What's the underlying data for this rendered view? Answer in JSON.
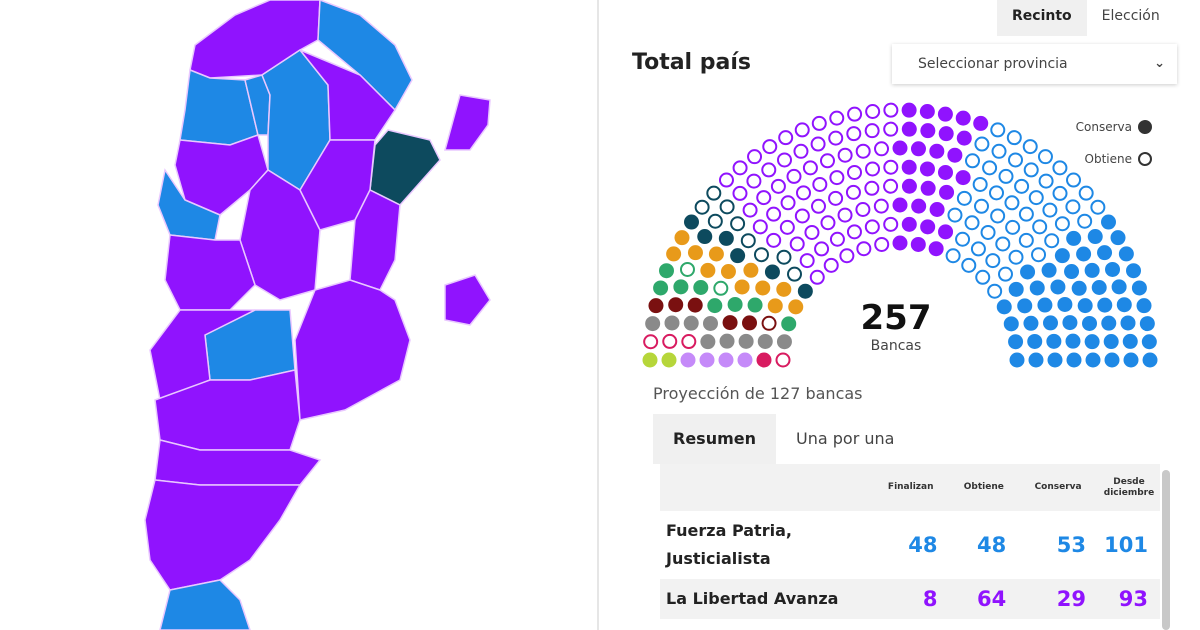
{
  "top_tabs": [
    {
      "label": "Recinto",
      "active": true
    },
    {
      "label": "Elección",
      "active": false
    }
  ],
  "title": "Total país",
  "province_select": {
    "value": "Seleccionar provincia"
  },
  "legend": {
    "conserva": "Conserva",
    "obtiene": "Obtiene"
  },
  "total": {
    "value": "257",
    "label": "Bancas"
  },
  "projection": "Proyección de 127 bancas",
  "sub_tabs": [
    {
      "label": "Resumen",
      "active": true
    },
    {
      "label": "Una por una",
      "active": false
    }
  ],
  "table": {
    "headers": [
      "Finalizan",
      "Obtiene",
      "Conserva",
      "Desde diciembre"
    ],
    "rows": [
      {
        "party": "Fuerza Patria, Justicialista",
        "finalizan": "48",
        "obtiene": "48",
        "conserva": "53",
        "desde": "101",
        "color": "#1e88e5"
      },
      {
        "party": "La Libertad Avanza",
        "finalizan": "8",
        "obtiene": "64",
        "conserva": "29",
        "desde": "93",
        "color": "#9013fe"
      }
    ]
  },
  "colors": {
    "fuerza_patria": "#1e88e5",
    "lla": "#9013fe",
    "dark": "#0d4a5e"
  },
  "seat_groups": [
    {
      "color": "#b6d63a",
      "filled": 2,
      "open": 0
    },
    {
      "color": "#c58af9",
      "filled": 4,
      "open": 0
    },
    {
      "color": "#d81b60",
      "filled": 1,
      "open": 4
    },
    {
      "color": "#8a8a8a",
      "filled": 9,
      "open": 0
    },
    {
      "color": "#7a1010",
      "filled": 5,
      "open": 1
    },
    {
      "color": "#2ea86b",
      "filled": 8,
      "open": 2
    },
    {
      "color": "#e89a1a",
      "filled": 12,
      "open": 0
    },
    {
      "color": "#0d4a5e",
      "filled": 6,
      "open": 9
    },
    {
      "color": "#9013fe",
      "filled": 0,
      "open": 64
    },
    {
      "color": "#9013fe",
      "filled": 29,
      "open": 0
    },
    {
      "color": "#1e88e5",
      "filled": 0,
      "open": 48
    },
    {
      "color": "#1e88e5",
      "filled": 53,
      "open": 0
    }
  ]
}
